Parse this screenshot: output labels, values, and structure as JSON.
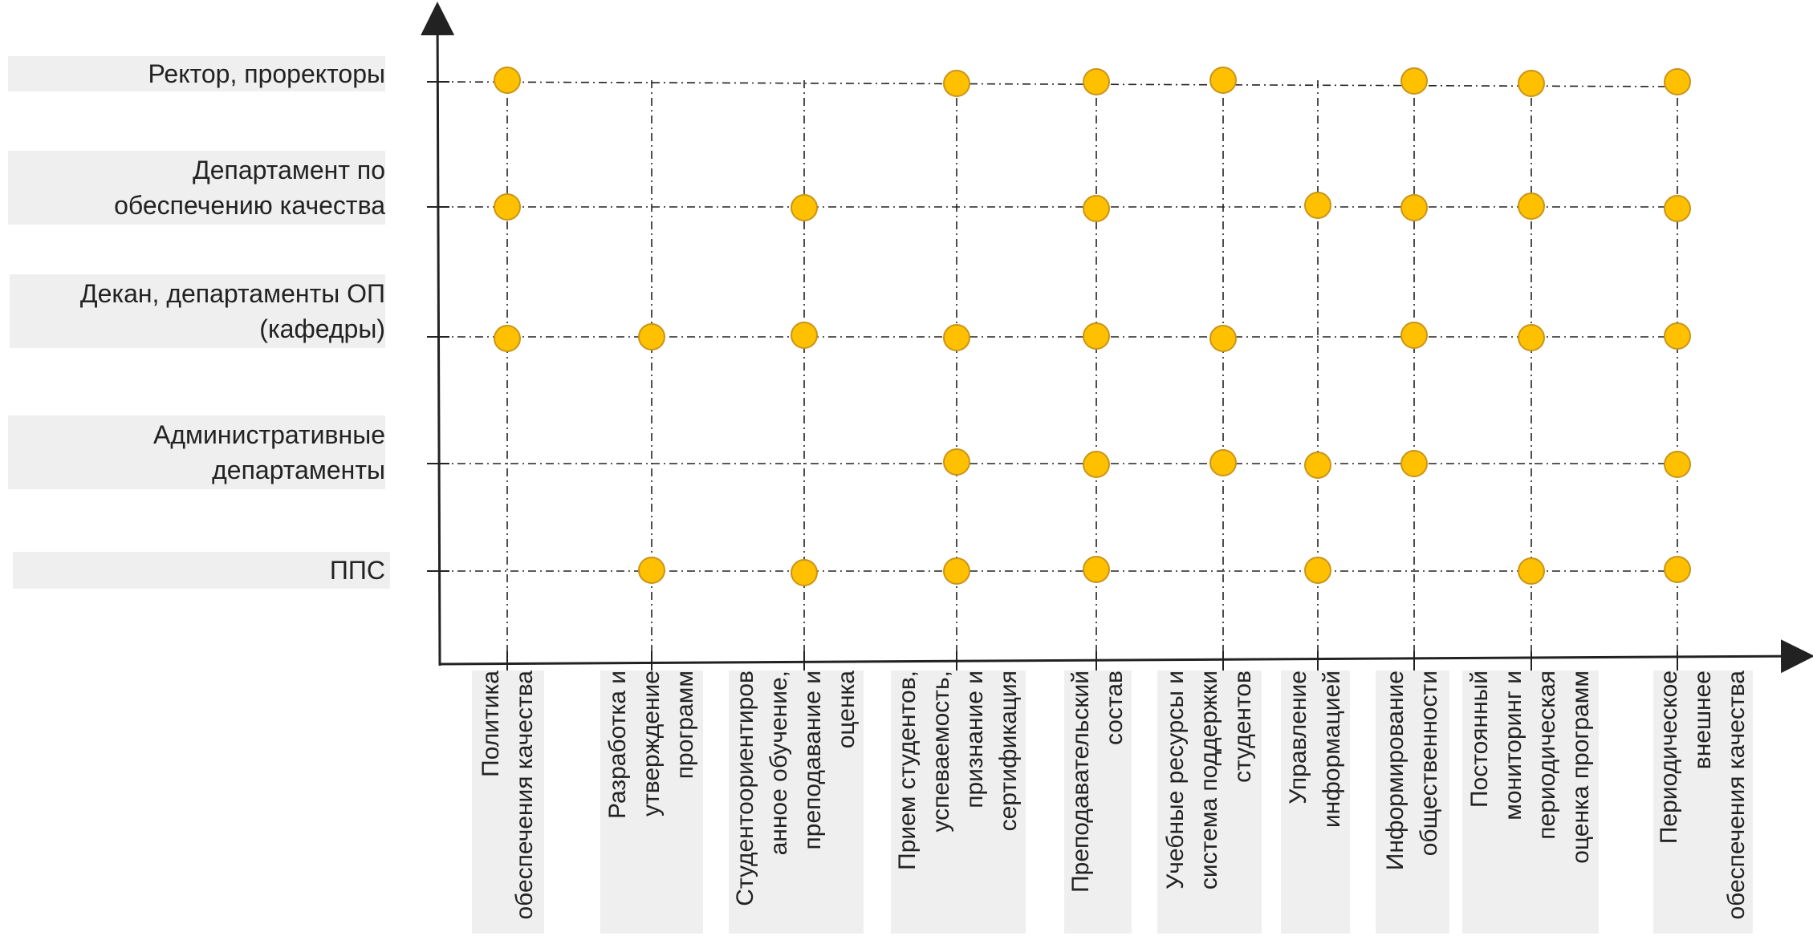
{
  "rows": [
    {
      "label_lines": [
        "Ректор, проректоры"
      ]
    },
    {
      "label_lines": [
        "Департамент по",
        "обеспечению качества"
      ]
    },
    {
      "label_lines": [
        "Декан, департаменты ОП",
        "(кафедры)"
      ]
    },
    {
      "label_lines": [
        "Административные",
        "департаменты"
      ]
    },
    {
      "label_lines": [
        "ППС"
      ]
    }
  ],
  "columns": [
    {
      "label_lines": [
        "Политика",
        "обеспечения качества"
      ]
    },
    {
      "label_lines": [
        "Разработка и",
        "утверждение",
        "программ"
      ]
    },
    {
      "label_lines": [
        "Студентоориентиров",
        "анное обучение,",
        "преподавание и",
        "оценка"
      ]
    },
    {
      "label_lines": [
        "Прием студентов,",
        "успеваемость,",
        "признание и",
        "сертификация"
      ]
    },
    {
      "label_lines": [
        "Преподавательский",
        "состав"
      ]
    },
    {
      "label_lines": [
        "Учебные ресурсы и",
        "система поддержки",
        "студентов"
      ]
    },
    {
      "label_lines": [
        "Управление",
        "информацией"
      ]
    },
    {
      "label_lines": [
        "Информирование",
        "общественности"
      ]
    },
    {
      "label_lines": [
        "Постоянный",
        "мониторинг и",
        "периодическая",
        "оценка программ"
      ]
    },
    {
      "label_lines": [
        "Периодическое",
        "внешнее",
        "обеспечения качества"
      ]
    }
  ],
  "matrix": [
    [
      1,
      0,
      0,
      1,
      1,
      1,
      0,
      1,
      1,
      1
    ],
    [
      1,
      0,
      1,
      0,
      1,
      0,
      1,
      1,
      1,
      1
    ],
    [
      1,
      1,
      1,
      1,
      1,
      1,
      0,
      1,
      1,
      1
    ],
    [
      0,
      0,
      0,
      1,
      1,
      1,
      1,
      1,
      0,
      1
    ],
    [
      0,
      1,
      1,
      1,
      1,
      0,
      1,
      0,
      1,
      1
    ]
  ],
  "colors": {
    "dot_fill": "#ffc000",
    "dot_stroke": "#c9951a",
    "line": "#222222",
    "box": "#efefef"
  }
}
